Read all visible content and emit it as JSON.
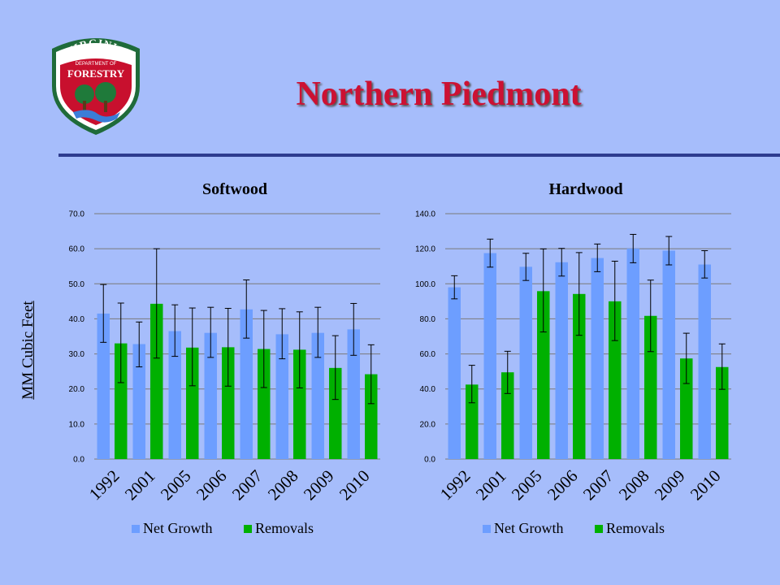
{
  "slide": {
    "title": "Northern Piedmont",
    "y_axis_label": "MM Cubic Feet",
    "logo_text_top": "VIRGINIA",
    "logo_text_middle": "DEPARTMENT OF",
    "logo_text_main": "FORESTRY"
  },
  "colors": {
    "background": "#a6bdfb",
    "title": "#cc1133",
    "net_growth": "#6d9eff",
    "removals": "#00b000",
    "divider": "#2e3c8f"
  },
  "chart_data": [
    {
      "type": "bar",
      "title": "Softwood",
      "categories": [
        "1992",
        "2001",
        "2005",
        "2006",
        "2007",
        "2008",
        "2009",
        "2010"
      ],
      "ylim": [
        0,
        70
      ],
      "yticks": [
        "0.0",
        "10.0",
        "20.0",
        "30.0",
        "40.0",
        "50.0",
        "60.0",
        "70.0"
      ],
      "grid": true,
      "legend": "bottom",
      "series": [
        {
          "name": "Net Growth",
          "color": "#6d9eff",
          "values": [
            41.5,
            32.8,
            36.5,
            36.0,
            42.7,
            35.6,
            36.0,
            37.0
          ],
          "error_low": [
            33.3,
            26.3,
            29.3,
            29.0,
            34.5,
            28.6,
            29.0,
            29.6
          ],
          "error_high": [
            49.8,
            39.1,
            44.0,
            43.3,
            51.1,
            42.9,
            43.3,
            44.4
          ]
        },
        {
          "name": "Removals",
          "color": "#00b000",
          "values": [
            33.0,
            44.3,
            31.8,
            31.9,
            31.4,
            31.2,
            26.0,
            24.2
          ],
          "error_low": [
            21.8,
            28.8,
            20.9,
            20.8,
            20.4,
            20.3,
            17.0,
            15.8
          ],
          "error_high": [
            44.5,
            60.0,
            43.1,
            43.0,
            42.4,
            42.0,
            35.2,
            32.6
          ]
        }
      ]
    },
    {
      "type": "bar",
      "title": "Hardwood",
      "categories": [
        "1992",
        "2001",
        "2005",
        "2006",
        "2007",
        "2008",
        "2009",
        "2010"
      ],
      "ylim": [
        0,
        140
      ],
      "yticks": [
        "0.0",
        "20.0",
        "40.0",
        "60.0",
        "80.0",
        "100.0",
        "120.0",
        "140.0"
      ],
      "grid": true,
      "legend": "bottom",
      "series": [
        {
          "name": "Net Growth",
          "color": "#6d9eff",
          "values": [
            98.0,
            117.5,
            109.7,
            112.3,
            114.7,
            120.1,
            118.9,
            111.0
          ],
          "error_low": [
            91.4,
            109.5,
            101.9,
            104.4,
            106.9,
            112.0,
            110.8,
            103.3
          ],
          "error_high": [
            104.6,
            125.5,
            117.4,
            120.2,
            122.7,
            128.2,
            127.0,
            118.9
          ]
        },
        {
          "name": "Removals",
          "color": "#00b000",
          "values": [
            42.5,
            49.5,
            95.8,
            94.2,
            90.0,
            81.7,
            57.4,
            52.5
          ],
          "error_low": [
            32.1,
            37.4,
            72.5,
            70.6,
            67.6,
            61.3,
            43.1,
            39.8
          ],
          "error_high": [
            53.5,
            61.5,
            119.9,
            117.8,
            112.9,
            102.1,
            71.8,
            65.7
          ]
        }
      ]
    }
  ]
}
